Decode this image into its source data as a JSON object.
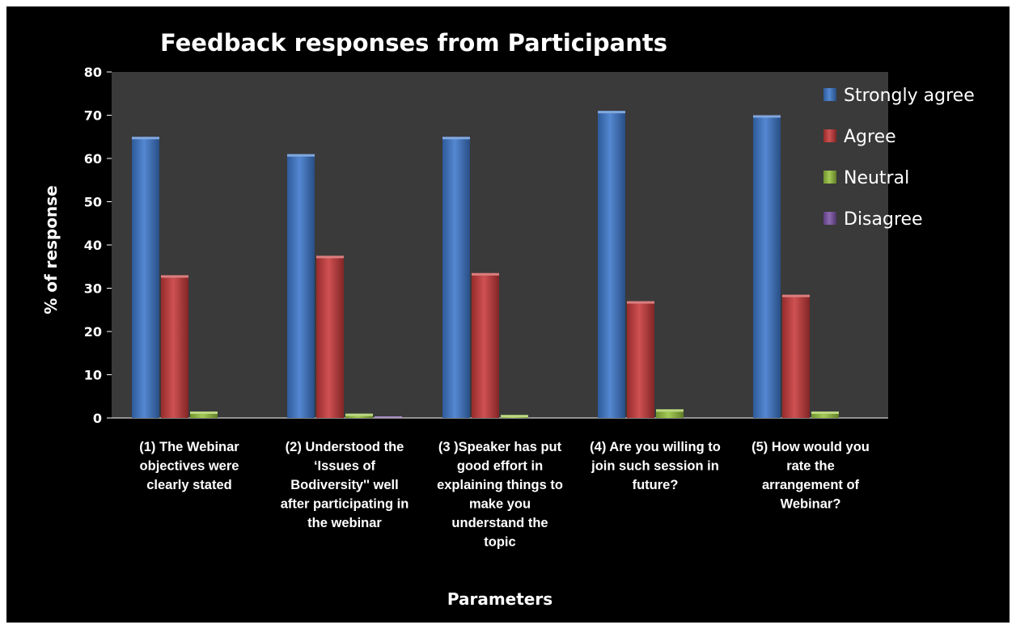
{
  "chart_data": {
    "type": "bar",
    "title": "Feedback responses from Participants",
    "xlabel": "Parameters",
    "ylabel": "% of response",
    "ylim": [
      0,
      80
    ],
    "yticks": [
      0,
      10,
      20,
      30,
      40,
      50,
      60,
      70,
      80
    ],
    "grid": false,
    "legend_position": "right",
    "categories": [
      "(1) The Webinar objectives were clearly stated",
      "(2) Understood the ‘Issues of Bodiversity'' well after participating in the webinar",
      "(3 )Speaker has put good effort in explaining things to make you understand the topic",
      "(4) Are you willing to join such session in future?",
      "(5) How would you rate the arrangement of Webinar?"
    ],
    "category_lines": [
      [
        "(1) The Webinar",
        "objectives were",
        "clearly stated"
      ],
      [
        "(2) Understood the",
        "‘Issues of",
        "Bodiversity'' well",
        "after participating in",
        "the webinar"
      ],
      [
        "(3 )Speaker has put",
        "good effort in",
        "explaining things to",
        "make you",
        "understand the",
        "topic"
      ],
      [
        "(4) Are you willing to",
        "join such session in",
        "future?"
      ],
      [
        "(5) How would you",
        "rate the",
        "arrangement of",
        "Webinar?"
      ]
    ],
    "series": [
      {
        "name": "Strongly agree",
        "color": "#3d78cc",
        "values": [
          65,
          61,
          65,
          71,
          70
        ]
      },
      {
        "name": "Agree",
        "color": "#c8393a",
        "values": [
          33,
          37.5,
          33.5,
          27,
          28.5
        ]
      },
      {
        "name": "Neutral",
        "color": "#96c33e",
        "values": [
          1.5,
          1,
          0.7,
          2,
          1.5
        ]
      },
      {
        "name": "Disagree",
        "color": "#7d55a8",
        "values": [
          0,
          0.3,
          0,
          0,
          0
        ]
      }
    ],
    "colors": {
      "background": "#000000",
      "plot_area": "#3a3a3a",
      "text": "#ffffff"
    }
  }
}
